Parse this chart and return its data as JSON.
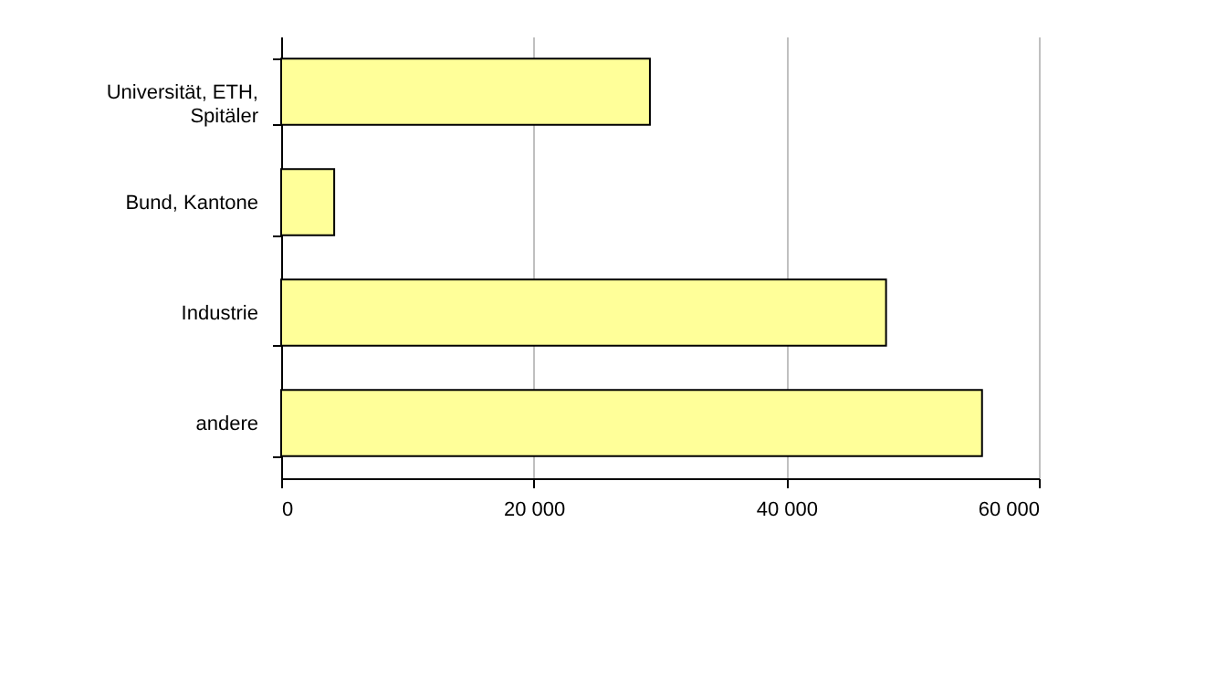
{
  "chart_data": {
    "type": "bar",
    "orientation": "horizontal",
    "categories": [
      "Universität, ETH, Spitäler",
      "Bund, Kantone",
      "Industrie",
      "andere"
    ],
    "values": [
      29200,
      4200,
      47900,
      55500
    ],
    "color": "#ffff99",
    "xlim": [
      0,
      60000
    ],
    "xticks": [
      {
        "value": 0,
        "label": "0"
      },
      {
        "value": 20000,
        "label": "20 000"
      },
      {
        "value": 40000,
        "label": "40 000"
      },
      {
        "value": 60000,
        "label": "60 000"
      }
    ],
    "grid": "x"
  }
}
